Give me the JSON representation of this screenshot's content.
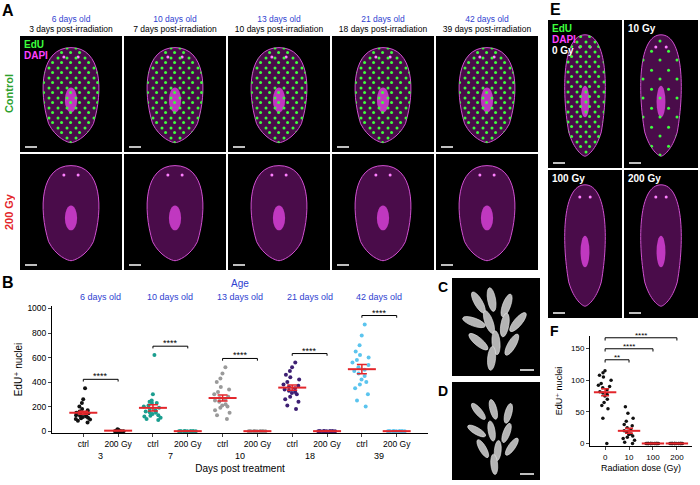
{
  "panels": {
    "A": {
      "panel": "A",
      "columns": [
        {
          "age": "6 days old",
          "time": "3 days post-irradiation"
        },
        {
          "age": "10 days old",
          "time": "7 days post-irradiation"
        },
        {
          "age": "13 days old",
          "time": "10 days post-irradiation"
        },
        {
          "age": "21 days old",
          "time": "18 days post-irradiation"
        },
        {
          "age": "42 days old",
          "time": "39 days post-irradiation"
        }
      ],
      "rows": [
        {
          "label": "Control",
          "color": "#2ca02c"
        },
        {
          "label": "200 Gy",
          "color": "#e3262b"
        }
      ],
      "stains": [
        {
          "text": "EdU",
          "color": "#3dff3d"
        },
        {
          "text": "DAPI",
          "color": "#ff40ff"
        }
      ]
    },
    "C": {
      "panel": "C"
    },
    "D": {
      "panel": "D"
    },
    "E": {
      "panel": "E",
      "images": [
        "0 Gy",
        "10 Gy",
        "100 Gy",
        "200 Gy"
      ],
      "stains": [
        {
          "text": "EdU",
          "color": "#3dff3d"
        },
        {
          "text": "DAPI",
          "color": "#ff40ff"
        }
      ]
    }
  },
  "chart_data": [
    {
      "panel": "B",
      "type": "scatter",
      "title": "Age",
      "group_labels": [
        "6 days old",
        "10 days old",
        "13 days old",
        "21 days old",
        "42 days old"
      ],
      "categories": [
        "ctrl",
        "200 Gy",
        "ctrl",
        "200 Gy",
        "ctrl",
        "200 Gy",
        "ctrl",
        "200 Gy",
        "ctrl",
        "200 Gy"
      ],
      "x_group_labels": [
        "3",
        "7",
        "10",
        "18",
        "39"
      ],
      "x_label": "Days post treatment",
      "y_label": "EdU⁺ nuclei",
      "ylim": [
        -15,
        1020
      ],
      "yticks": [
        0,
        200,
        400,
        600,
        800,
        1000
      ],
      "colors": [
        "#111111",
        "#111111",
        "#1b9e8f",
        "#1b9e8f",
        "#9a9a9a",
        "#9a9a9a",
        "#3d1f73",
        "#3d1f73",
        "#5bc4ee",
        "#5bc4ee"
      ],
      "points": [
        [
          70,
          85,
          95,
          100,
          105,
          110,
          115,
          120,
          125,
          130,
          135,
          140,
          145,
          150,
          160,
          170,
          180,
          200,
          230,
          260,
          350
        ],
        [
          0,
          0,
          0,
          0,
          0,
          0,
          2,
          3,
          5,
          8,
          10,
          15
        ],
        [
          90,
          100,
          110,
          120,
          125,
          130,
          140,
          150,
          155,
          160,
          170,
          180,
          190,
          200,
          210,
          230,
          230,
          240,
          250,
          300,
          620
        ],
        [
          0,
          0,
          0,
          0,
          0,
          0,
          0,
          0,
          0,
          0,
          0,
          0
        ],
        [
          100,
          130,
          150,
          170,
          190,
          200,
          210,
          220,
          240,
          250,
          260,
          270,
          280,
          300,
          320,
          340,
          360,
          400,
          430,
          470,
          520
        ],
        [
          0,
          0,
          0,
          0,
          0,
          0,
          0,
          0,
          0,
          0,
          0,
          0
        ],
        [
          180,
          210,
          240,
          260,
          280,
          300,
          310,
          320,
          330,
          340,
          350,
          360,
          370,
          380,
          400,
          420,
          440,
          460,
          490,
          520,
          560
        ],
        [
          0,
          0,
          0,
          0,
          0,
          0,
          0,
          0,
          0,
          0,
          0,
          0
        ],
        [
          200,
          250,
          300,
          350,
          380,
          400,
          420,
          450,
          470,
          490,
          500,
          520,
          540,
          560,
          580,
          600,
          620,
          650,
          700,
          780,
          870
        ],
        [
          0,
          0,
          0,
          0,
          0,
          0,
          0,
          0,
          0,
          0,
          0,
          0
        ]
      ],
      "means": [
        150,
        4,
        190,
        0,
        270,
        0,
        355,
        0,
        505,
        0
      ],
      "sem": [
        13,
        1.5,
        25,
        0,
        25,
        0,
        22,
        0,
        38,
        0
      ],
      "significance": [
        {
          "from": 0,
          "to": 1,
          "label": "****"
        },
        {
          "from": 2,
          "to": 3,
          "label": "****"
        },
        {
          "from": 4,
          "to": 5,
          "label": "****"
        },
        {
          "from": 6,
          "to": 7,
          "label": "****"
        },
        {
          "from": 8,
          "to": 9,
          "label": "****"
        }
      ]
    },
    {
      "panel": "F",
      "type": "scatter",
      "categories": [
        "0",
        "10",
        "100",
        "200"
      ],
      "x_label": "Radiation dose (Gy)",
      "y_label": "EdU⁺ nuclei",
      "ylim": [
        -4,
        170
      ],
      "yticks": [
        0,
        50,
        100,
        150
      ],
      "colors": [
        "#111111",
        "#111111",
        "#111111",
        "#111111"
      ],
      "points": [
        [
          0,
          40,
          55,
          60,
          65,
          70,
          75,
          78,
          80,
          82,
          85,
          88,
          90,
          92,
          95,
          100,
          105,
          108,
          112,
          115
        ],
        [
          0,
          2,
          5,
          8,
          10,
          12,
          14,
          15,
          18,
          20,
          22,
          25,
          28,
          30,
          35,
          40,
          48,
          58
        ],
        [
          0,
          0,
          0,
          0,
          0,
          0,
          0,
          0,
          0,
          0,
          0,
          0,
          0,
          0,
          0
        ],
        [
          0,
          0,
          0,
          0,
          0,
          0,
          0,
          0,
          0,
          0,
          0,
          0,
          0,
          0,
          0
        ]
      ],
      "means": [
        81,
        20,
        0,
        0
      ],
      "sem": [
        5.5,
        4,
        0,
        0
      ],
      "significance": [
        {
          "from": 0,
          "to": 1,
          "label": "**"
        },
        {
          "from": 0,
          "to": 2,
          "label": "****"
        },
        {
          "from": 0,
          "to": 3,
          "label": "****"
        }
      ]
    }
  ]
}
